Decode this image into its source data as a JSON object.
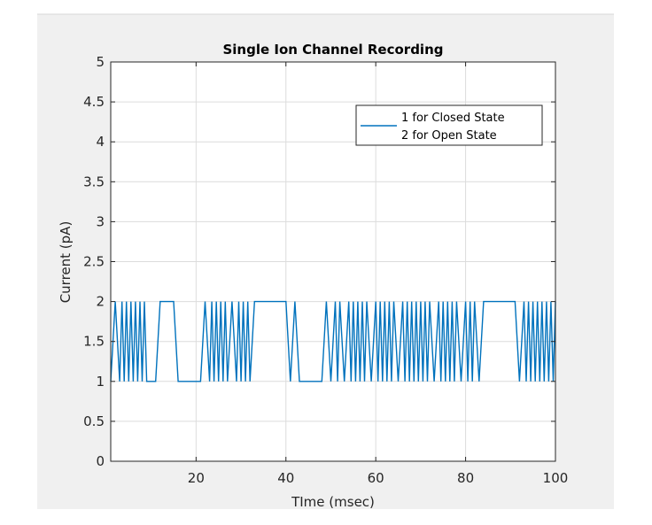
{
  "chart_data": {
    "type": "line",
    "title": "Single Ion Channel Recording",
    "xlabel": "TIme (msec)",
    "ylabel": "Current (pA)",
    "xlim": [
      1,
      100
    ],
    "ylim": [
      0,
      5
    ],
    "xticks": [
      20,
      40,
      60,
      80,
      100
    ],
    "yticks": [
      0,
      0.5,
      1,
      1.5,
      2,
      2.5,
      3,
      3.5,
      4,
      4.5,
      5
    ],
    "xtick_labels": [
      "20",
      "40",
      "60",
      "80",
      "100"
    ],
    "ytick_labels": [
      "0",
      "0.5",
      "1",
      "1.5",
      "2",
      "2.5",
      "3",
      "3.5",
      "4",
      "4.5",
      "5"
    ],
    "grid": true,
    "legend": {
      "position": "top-right",
      "entries": [
        "1 for Closed State",
        "2 for Open State"
      ]
    },
    "series": [
      {
        "color": "#0072bd",
        "x": [
          1,
          2,
          3,
          3.5,
          4,
          4.5,
          5,
          5.5,
          6,
          6.5,
          7,
          7.5,
          8,
          8.5,
          9,
          11,
          12,
          13,
          14,
          15,
          16,
          17,
          21,
          22,
          23,
          23.5,
          24,
          24.5,
          25,
          25.5,
          26,
          26.5,
          27,
          28,
          29,
          29.5,
          30,
          30.5,
          31,
          31.5,
          32,
          33,
          34,
          35,
          40,
          41,
          42,
          43,
          44,
          48,
          49,
          50,
          51,
          51.5,
          52,
          53,
          54,
          54.5,
          55,
          55.5,
          56,
          56.5,
          57,
          57.5,
          58,
          59,
          60,
          60.5,
          61,
          61.5,
          62,
          62.5,
          63,
          63.5,
          64,
          65,
          66,
          66.5,
          67,
          67.5,
          68,
          68.5,
          69,
          69.5,
          70,
          70.5,
          71,
          71.5,
          72,
          73,
          74,
          74.5,
          75,
          75.5,
          76,
          76.5,
          77,
          77.5,
          78,
          79,
          80,
          80.5,
          81,
          81.5,
          82,
          83,
          84,
          85,
          91,
          92,
          93,
          93.5,
          94,
          94.5,
          95,
          95.5,
          96,
          96.5,
          97,
          97.5,
          98,
          98.5,
          99,
          99.5,
          100
        ],
        "y": [
          1,
          2,
          1,
          2,
          1,
          2,
          1,
          2,
          1,
          2,
          1,
          2,
          1,
          2,
          1,
          1,
          2,
          2,
          2,
          2,
          1,
          1,
          1,
          2,
          1,
          2,
          1,
          2,
          1,
          2,
          1,
          2,
          1,
          2,
          1,
          2,
          1,
          2,
          1,
          2,
          1,
          2,
          2,
          2,
          2,
          1,
          2,
          1,
          1,
          1,
          2,
          1,
          2,
          1,
          2,
          1,
          2,
          1,
          2,
          1,
          2,
          1,
          2,
          1,
          2,
          1,
          2,
          1,
          2,
          1,
          2,
          1,
          2,
          1,
          2,
          1,
          2,
          1,
          2,
          1,
          2,
          1,
          2,
          1,
          2,
          1,
          2,
          1,
          2,
          1,
          2,
          1,
          2,
          1,
          2,
          1,
          2,
          1,
          2,
          1,
          2,
          1,
          2,
          1,
          2,
          1,
          2,
          2,
          2,
          1,
          2,
          1,
          2,
          1,
          2,
          1,
          2,
          1,
          2,
          1,
          2,
          1,
          2,
          1,
          2
        ]
      }
    ]
  }
}
